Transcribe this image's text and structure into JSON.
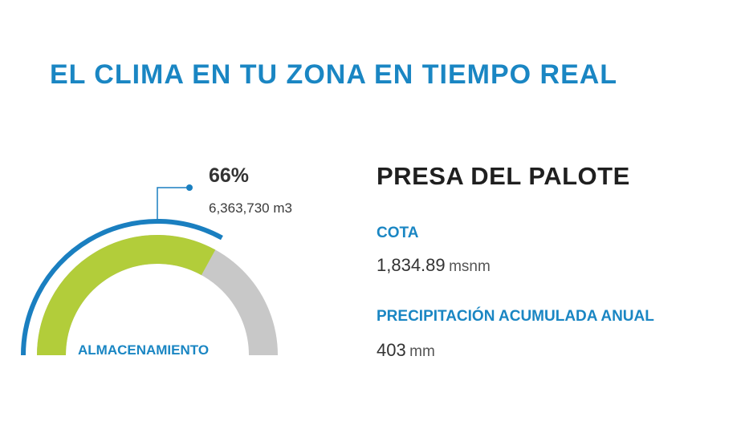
{
  "header": {
    "title": "EL CLIMA EN TU ZONA EN TIEMPO REAL"
  },
  "gauge": {
    "label": "ALMACENAMIENTO",
    "percent_text": "66%",
    "fill_fraction": 0.66,
    "volume": "6,363,730 m3",
    "colors": {
      "fill": "#b2cd3a",
      "track": "#c8c8c8",
      "outline": "#1a7fc0"
    }
  },
  "dam": {
    "name": "PRESA DEL PALOTE",
    "cota": {
      "label": "COTA",
      "value": "1,834.89",
      "unit": "msnm"
    },
    "precipitation": {
      "label": "PRECIPITACIÓN ACUMULADA ANUAL",
      "value": "403",
      "unit": "mm"
    }
  },
  "colors": {
    "accent": "#1a86c3",
    "text": "#333333"
  }
}
